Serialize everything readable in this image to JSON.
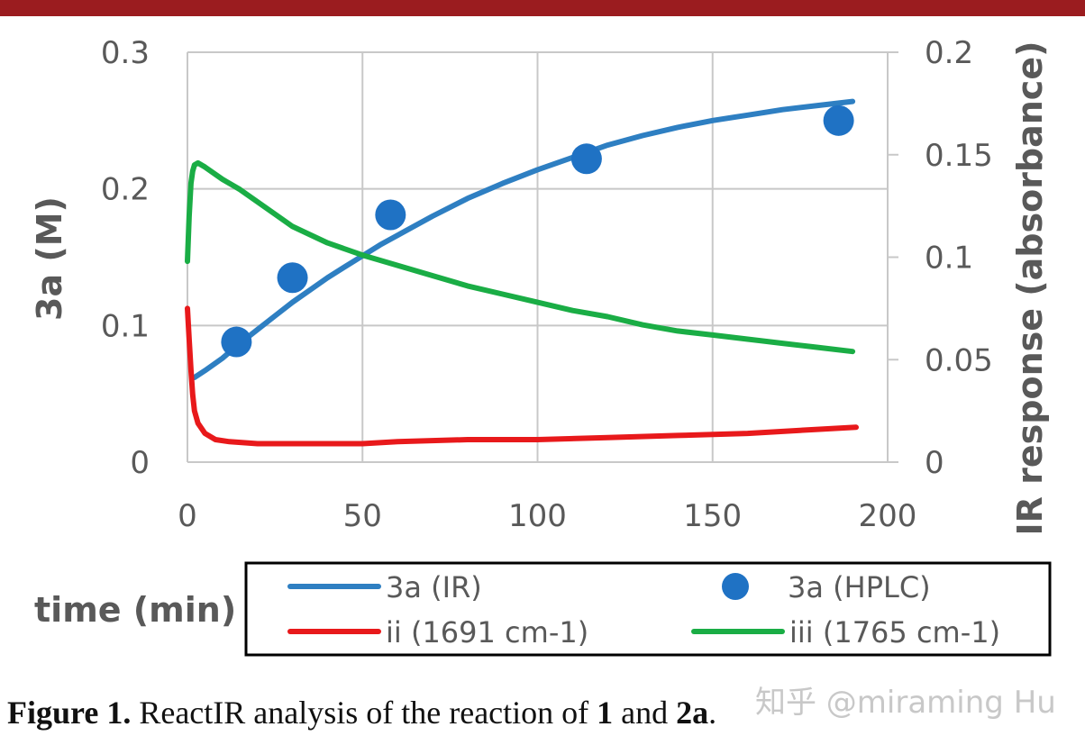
{
  "colors": {
    "header_bar": "#9b1c1f",
    "ir_line": "#2e7fc2",
    "hplc_marker": "#1f72c4",
    "ii_line": "#e8191b",
    "iii_line": "#1aad45",
    "axis_text": "#595959",
    "grid": "#c8c8c8"
  },
  "chart_data": {
    "type": "line",
    "title": "",
    "xlabel": "time (min)",
    "ylabel": "3a (M)",
    "y2label": "IR response (absorbance)",
    "xlim": [
      0,
      200
    ],
    "ylim": [
      0,
      0.3
    ],
    "y2lim": [
      0,
      0.2
    ],
    "x_ticks": [
      "0",
      "50",
      "100",
      "150",
      "200"
    ],
    "y_ticks": [
      "0",
      "0.1",
      "0.2",
      "0.3"
    ],
    "y2_ticks": [
      "0",
      "0.05",
      "0.1",
      "0.15",
      "0.2"
    ],
    "grid": true,
    "legend_position": "bottom",
    "series": [
      {
        "name": "3a (IR)",
        "kind": "line",
        "axis": "left",
        "color_key": "ir_line",
        "points": [
          [
            2,
            0.062
          ],
          [
            5,
            0.067
          ],
          [
            10,
            0.076
          ],
          [
            15,
            0.087
          ],
          [
            20,
            0.097
          ],
          [
            25,
            0.107
          ],
          [
            30,
            0.117
          ],
          [
            35,
            0.126
          ],
          [
            40,
            0.135
          ],
          [
            45,
            0.143
          ],
          [
            50,
            0.151
          ],
          [
            55,
            0.159
          ],
          [
            60,
            0.166
          ],
          [
            70,
            0.18
          ],
          [
            80,
            0.193
          ],
          [
            90,
            0.204
          ],
          [
            100,
            0.214
          ],
          [
            110,
            0.223
          ],
          [
            120,
            0.232
          ],
          [
            130,
            0.239
          ],
          [
            140,
            0.245
          ],
          [
            150,
            0.25
          ],
          [
            160,
            0.254
          ],
          [
            170,
            0.258
          ],
          [
            180,
            0.261
          ],
          [
            190,
            0.264
          ]
        ]
      },
      {
        "name": "3a (HPLC)",
        "kind": "scatter",
        "axis": "left",
        "color_key": "hplc_marker",
        "points": [
          [
            14,
            0.088
          ],
          [
            30,
            0.135
          ],
          [
            58,
            0.181
          ],
          [
            114,
            0.222
          ],
          [
            186,
            0.25
          ]
        ]
      },
      {
        "name": "ii (1691 cm-1)",
        "kind": "line",
        "axis": "right",
        "color_key": "ii_line",
        "points": [
          [
            0,
            0.075
          ],
          [
            0.5,
            0.06
          ],
          [
            1,
            0.045
          ],
          [
            1.5,
            0.033
          ],
          [
            2,
            0.025
          ],
          [
            3,
            0.019
          ],
          [
            5,
            0.014
          ],
          [
            8,
            0.011
          ],
          [
            12,
            0.01
          ],
          [
            20,
            0.009
          ],
          [
            30,
            0.009
          ],
          [
            40,
            0.009
          ],
          [
            50,
            0.009
          ],
          [
            60,
            0.01
          ],
          [
            80,
            0.011
          ],
          [
            100,
            0.011
          ],
          [
            120,
            0.012
          ],
          [
            140,
            0.013
          ],
          [
            160,
            0.014
          ],
          [
            180,
            0.016
          ],
          [
            191,
            0.017
          ]
        ]
      },
      {
        "name": "iii (1765 cm-1)",
        "kind": "line",
        "axis": "right",
        "color_key": "iii_line",
        "points": [
          [
            0,
            0.098
          ],
          [
            0.5,
            0.12
          ],
          [
            1,
            0.136
          ],
          [
            1.5,
            0.142
          ],
          [
            2,
            0.145
          ],
          [
            3,
            0.146
          ],
          [
            5,
            0.144
          ],
          [
            10,
            0.138
          ],
          [
            15,
            0.133
          ],
          [
            20,
            0.127
          ],
          [
            25,
            0.121
          ],
          [
            30,
            0.115
          ],
          [
            40,
            0.107
          ],
          [
            50,
            0.101
          ],
          [
            60,
            0.096
          ],
          [
            70,
            0.091
          ],
          [
            80,
            0.086
          ],
          [
            90,
            0.082
          ],
          [
            100,
            0.078
          ],
          [
            110,
            0.074
          ],
          [
            120,
            0.071
          ],
          [
            130,
            0.067
          ],
          [
            140,
            0.064
          ],
          [
            150,
            0.062
          ],
          [
            160,
            0.06
          ],
          [
            170,
            0.058
          ],
          [
            180,
            0.056
          ],
          [
            190,
            0.054
          ]
        ]
      }
    ]
  },
  "caption": {
    "label": "Figure 1.",
    "text_1": " ReactIR analysis of the reaction of ",
    "bold_1": "1",
    "text_2": " and ",
    "bold_2": "2a",
    "text_3": "."
  },
  "watermark": "知乎 @miraming Hu"
}
